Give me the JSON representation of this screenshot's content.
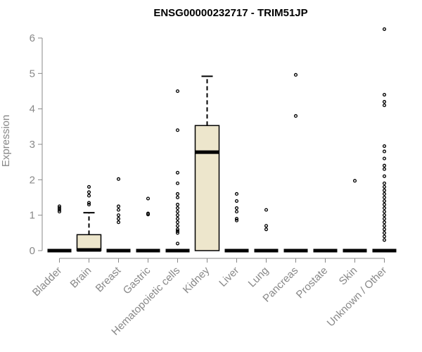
{
  "chart_data": {
    "type": "boxplot",
    "title": "ENSG00000232717 - TRIM51JP",
    "xlabel": "",
    "ylabel": "Expression",
    "ylim": [
      0,
      6.3
    ],
    "yticks": [
      0,
      1,
      2,
      3,
      4,
      5,
      6
    ],
    "grid": false,
    "legend": "none",
    "colors": {
      "box_fill": "#ede6cc",
      "box_stroke": "#000000",
      "axis": "#888888",
      "title": "#000000"
    },
    "categories": [
      "Bladder",
      "Brain",
      "Breast",
      "Gastric",
      "Hematopoietic cells",
      "Kidney",
      "Liver",
      "Lung",
      "Pancreas",
      "Prostate",
      "Skin",
      "Unknown / Other"
    ],
    "boxes": [
      {
        "name": "Bladder",
        "q1": 0,
        "median": 0,
        "q3": 0,
        "whisker_low": 0,
        "whisker_high": 0,
        "outliers": [
          1.1,
          1.15,
          1.2,
          1.25
        ]
      },
      {
        "name": "Brain",
        "q1": 0,
        "median": 0.02,
        "q3": 0.45,
        "whisker_low": 0,
        "whisker_high": 1.07,
        "outliers": [
          1.3,
          1.35,
          1.55,
          1.65,
          1.8
        ]
      },
      {
        "name": "Breast",
        "q1": 0,
        "median": 0,
        "q3": 0,
        "whisker_low": 0,
        "whisker_high": 0,
        "outliers": [
          0.8,
          0.9,
          1.0,
          1.15,
          1.25,
          2.02
        ]
      },
      {
        "name": "Gastric",
        "q1": 0,
        "median": 0,
        "q3": 0,
        "whisker_low": 0,
        "whisker_high": 0,
        "outliers": [
          1.02,
          1.05,
          1.47
        ]
      },
      {
        "name": "Hematopoietic cells",
        "q1": 0,
        "median": 0,
        "q3": 0,
        "whisker_low": 0,
        "whisker_high": 0,
        "outliers": [
          0.2,
          0.5,
          0.55,
          0.6,
          0.7,
          0.8,
          0.9,
          1.0,
          1.1,
          1.2,
          1.3,
          1.5,
          1.6,
          1.9,
          2.2,
          3.4,
          4.5
        ]
      },
      {
        "name": "Kidney",
        "q1": 0,
        "median": 2.78,
        "q3": 3.53,
        "whisker_low": 0,
        "whisker_high": 4.92,
        "outliers": []
      },
      {
        "name": "Liver",
        "q1": 0,
        "median": 0,
        "q3": 0,
        "whisker_low": 0,
        "whisker_high": 0,
        "outliers": [
          0.85,
          0.9,
          1.1,
          1.2,
          1.4,
          1.6
        ]
      },
      {
        "name": "Lung",
        "q1": 0,
        "median": 0,
        "q3": 0,
        "whisker_low": 0,
        "whisker_high": 0,
        "outliers": [
          0.6,
          0.7,
          1.15
        ]
      },
      {
        "name": "Pancreas",
        "q1": 0,
        "median": 0,
        "q3": 0,
        "whisker_low": 0,
        "whisker_high": 0,
        "outliers": [
          3.8,
          4.96
        ]
      },
      {
        "name": "Prostate",
        "q1": 0,
        "median": 0,
        "q3": 0,
        "whisker_low": 0,
        "whisker_high": 0,
        "outliers": []
      },
      {
        "name": "Skin",
        "q1": 0,
        "median": 0,
        "q3": 0,
        "whisker_low": 0,
        "whisker_high": 0,
        "outliers": [
          1.97
        ]
      },
      {
        "name": "Unknown / Other",
        "q1": 0,
        "median": 0,
        "q3": 0,
        "whisker_low": 0,
        "whisker_high": 0,
        "outliers": [
          0.3,
          0.4,
          0.5,
          0.6,
          0.7,
          0.8,
          0.9,
          1.0,
          1.1,
          1.2,
          1.3,
          1.4,
          1.5,
          1.6,
          1.7,
          1.8,
          1.9,
          2.1,
          2.3,
          2.4,
          2.6,
          2.8,
          2.95,
          4.1,
          4.2,
          4.4,
          6.25
        ]
      }
    ]
  }
}
